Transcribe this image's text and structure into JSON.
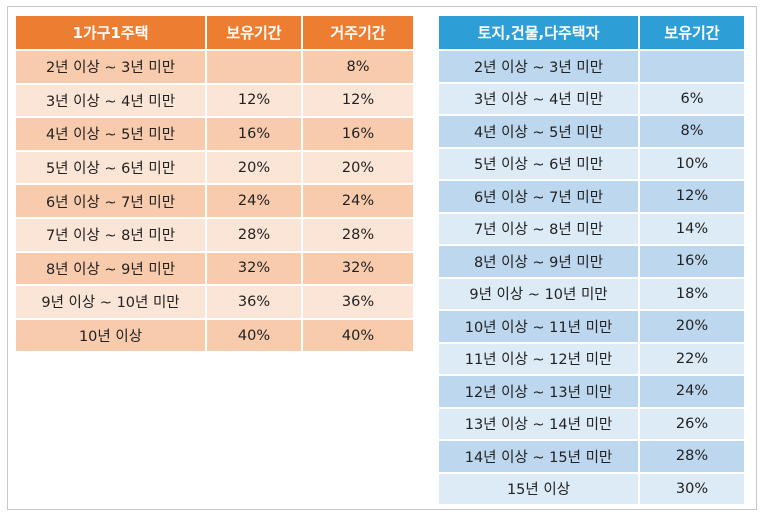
{
  "single_home": {
    "headers": [
      "1가구1주택",
      "보유기간",
      "거주기간"
    ],
    "rows": [
      {
        "period": "2년 이상 ~ 3년 미만",
        "holding": "",
        "residence": "8%"
      },
      {
        "period": "3년 이상 ~ 4년 미만",
        "holding": "12%",
        "residence": "12%"
      },
      {
        "period": "4년 이상 ~ 5년 미만",
        "holding": "16%",
        "residence": "16%"
      },
      {
        "period": "5년 이상 ~ 6년 미만",
        "holding": "20%",
        "residence": "20%"
      },
      {
        "period": "6년 이상 ~ 7년 미만",
        "holding": "24%",
        "residence": "24%"
      },
      {
        "period": "7년 이상 ~ 8년 미만",
        "holding": "28%",
        "residence": "28%"
      },
      {
        "period": "8년 이상 ~ 9년 미만",
        "holding": "32%",
        "residence": "32%"
      },
      {
        "period": "9년 이상 ~ 10년 미만",
        "holding": "36%",
        "residence": "36%"
      },
      {
        "period": "10년 이상",
        "holding": "40%",
        "residence": "40%"
      }
    ]
  },
  "land_multi_home": {
    "headers": [
      "토지,건물,다주택자",
      "보유기간"
    ],
    "rows": [
      {
        "period": "2년 이상 ~ 3년 미만",
        "holding": ""
      },
      {
        "period": "3년 이상 ~ 4년 미만",
        "holding": "6%"
      },
      {
        "period": "4년 이상 ~ 5년 미만",
        "holding": "8%"
      },
      {
        "period": "5년 이상 ~ 6년 미만",
        "holding": "10%"
      },
      {
        "period": "6년 이상 ~ 7년 미만",
        "holding": "12%"
      },
      {
        "period": "7년 이상 ~ 8년 미만",
        "holding": "14%"
      },
      {
        "period": "8년 이상 ~ 9년 미만",
        "holding": "16%"
      },
      {
        "period": "9년 이상 ~ 10년 미만",
        "holding": "18%"
      },
      {
        "period": "10년 이상 ~ 11년 미만",
        "holding": "20%"
      },
      {
        "period": "11년 이상 ~ 12년 미만",
        "holding": "22%"
      },
      {
        "period": "12년 이상 ~ 13년 미만",
        "holding": "24%"
      },
      {
        "period": "13년 이상 ~ 14년 미만",
        "holding": "26%"
      },
      {
        "period": "14년 이상 ~ 15년 미만",
        "holding": "28%"
      },
      {
        "period": "15년 이상",
        "holding": "30%"
      }
    ]
  },
  "colors": {
    "left_header": "#ed7d31",
    "left_row_dark": "#f8cbad",
    "left_row_light": "#fbe5d6",
    "right_header": "#2e9fd6",
    "right_row_dark": "#bdd7ee",
    "right_row_light": "#ddebf7"
  }
}
